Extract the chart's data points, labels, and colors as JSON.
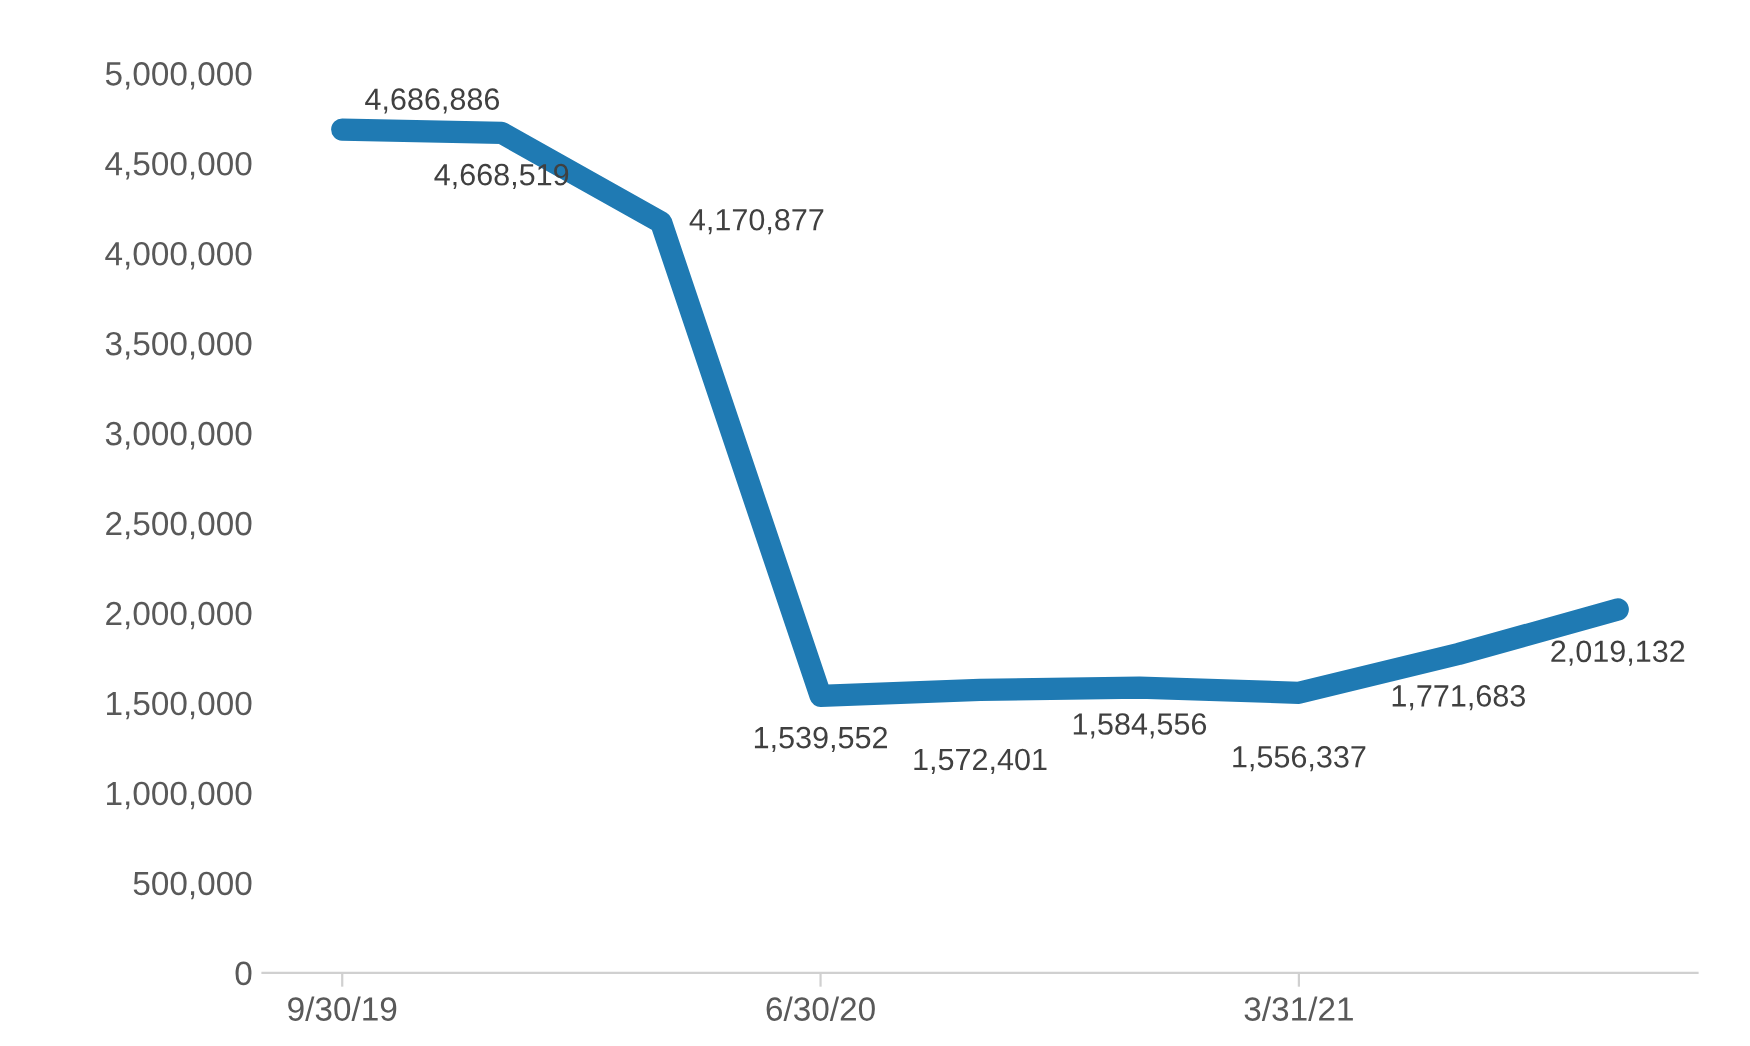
{
  "chart_data": {
    "type": "line",
    "categories": [
      "9/30/19",
      null,
      null,
      "6/30/20",
      null,
      null,
      "3/31/21",
      null,
      null
    ],
    "series": [
      {
        "color": "#1f7ab3",
        "values": [
          4686886,
          4668519,
          4170877,
          1539552,
          1572401,
          1584556,
          1556337,
          1771683,
          2019132
        ],
        "value_labels": [
          "4,686,886",
          "4,668,519",
          "4,170,877",
          "1,539,552",
          "1,572,401",
          "1,584,556",
          "1,556,337",
          "1,771,683",
          "2,019,132"
        ]
      }
    ],
    "ylim": [
      0,
      5000000
    ],
    "yticks": [
      {
        "value": 0,
        "label": "0"
      },
      {
        "value": 500000,
        "label": "500,000"
      },
      {
        "value": 1000000,
        "label": "1,000,000"
      },
      {
        "value": 1500000,
        "label": "1,500,000"
      },
      {
        "value": 2000000,
        "label": "2,000,000"
      },
      {
        "value": 2500000,
        "label": "2,500,000"
      },
      {
        "value": 3000000,
        "label": "3,000,000"
      },
      {
        "value": 3500000,
        "label": "3,500,000"
      },
      {
        "value": 4000000,
        "label": "4,000,000"
      },
      {
        "value": 4500000,
        "label": "4,500,000"
      },
      {
        "value": 5000000,
        "label": "5,000,000"
      }
    ],
    "grid": false,
    "line_style": "solid"
  }
}
